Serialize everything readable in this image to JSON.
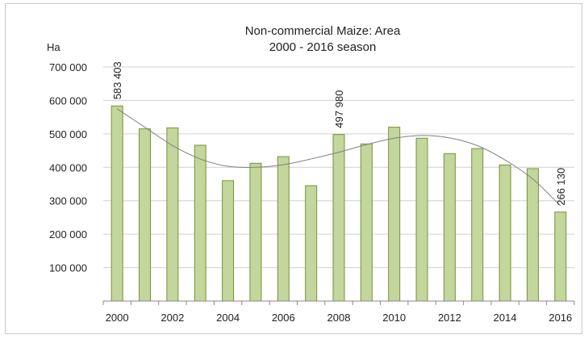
{
  "chart_data": {
    "type": "bar",
    "title": "Non-commercial Maize: Area",
    "subtitle": "2000 - 2016 season",
    "unit_label": "Ha",
    "categories": [
      "2000",
      "2001",
      "2002",
      "2003",
      "2004",
      "2005",
      "2006",
      "2007",
      "2008",
      "2009",
      "2010",
      "2011",
      "2012",
      "2013",
      "2014",
      "2015",
      "2016"
    ],
    "x_tick_labels": [
      "2000",
      "2002",
      "2004",
      "2006",
      "2008",
      "2010",
      "2012",
      "2014",
      "2016"
    ],
    "values": [
      583403,
      515000,
      518000,
      466000,
      360000,
      412000,
      432000,
      345000,
      497980,
      470000,
      520000,
      487000,
      441000,
      456000,
      407000,
      396000,
      266130
    ],
    "data_labels": [
      {
        "category": "2000",
        "text": "583 403"
      },
      {
        "category": "2008",
        "text": "497 980"
      },
      {
        "category": "2016",
        "text": "266 130"
      }
    ],
    "y_tick_labels": [
      "100 000",
      "200 000",
      "300 000",
      "400 000",
      "500 000",
      "600 000",
      "700 000"
    ],
    "ylim": [
      0,
      700000
    ],
    "yticks": [
      100000,
      200000,
      300000,
      400000,
      500000,
      600000,
      700000
    ],
    "trendline": {
      "type": "polynomial",
      "values": [
        575000,
        520000,
        465000,
        425000,
        403000,
        400000,
        408000,
        425000,
        445000,
        468000,
        487000,
        495000,
        488000,
        465000,
        422000,
        365000,
        285000
      ]
    },
    "grid": true,
    "colors": {
      "bar_fill": "#c3d69b",
      "bar_stroke": "#76923c",
      "grid": "#d0d0d0",
      "trend": "#808080"
    }
  }
}
